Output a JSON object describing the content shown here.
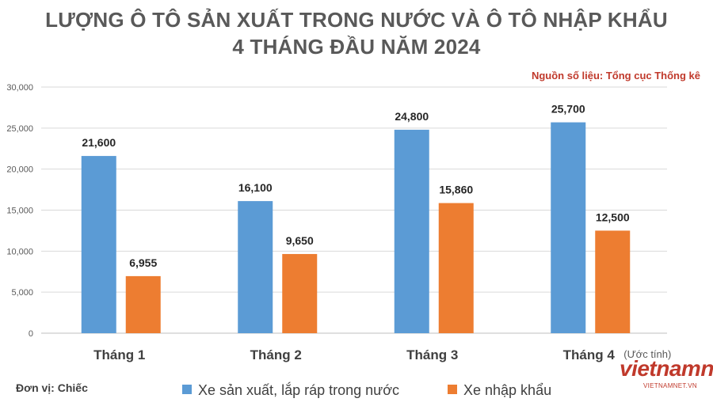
{
  "chart_data": {
    "type": "bar",
    "title_line1": "LƯỢNG Ô TÔ SẢN XUẤT TRONG NƯỚC VÀ Ô TÔ NHẬP KHẨU",
    "title_line2": "4 THÁNG ĐẦU NĂM 2024",
    "source": "Nguồn số liệu: Tổng cục Thống kê",
    "unit": "Đơn vị: Chiếc",
    "categories": [
      "Tháng 1",
      "Tháng 2",
      "Tháng 3",
      "Tháng 4"
    ],
    "category_notes": [
      "",
      "",
      "",
      "(Ước tính)"
    ],
    "series": [
      {
        "name": "Xe sản xuất, lắp ráp trong nước",
        "color": "#5b9bd5",
        "values": [
          21600,
          16100,
          24800,
          25700
        ],
        "labels": [
          "21,600",
          "16,100",
          "24,800",
          "25,700"
        ]
      },
      {
        "name": "Xe nhập khẩu",
        "color": "#ed7d31",
        "values": [
          6955,
          9650,
          15860,
          12500
        ],
        "labels": [
          "6,955",
          "9,650",
          "15,860",
          "12,500"
        ]
      }
    ],
    "ylim": [
      0,
      30000
    ],
    "yticks": [
      0,
      5000,
      10000,
      15000,
      20000,
      25000,
      30000
    ],
    "ytick_labels": [
      "0",
      "5,000",
      "10,000",
      "15,000",
      "20,000",
      "25,000",
      "30,000"
    ],
    "grid": true,
    "legend_position": "bottom"
  },
  "watermark": {
    "main": "vietnamnet",
    "sub": "VIETNAMNET.VN"
  }
}
